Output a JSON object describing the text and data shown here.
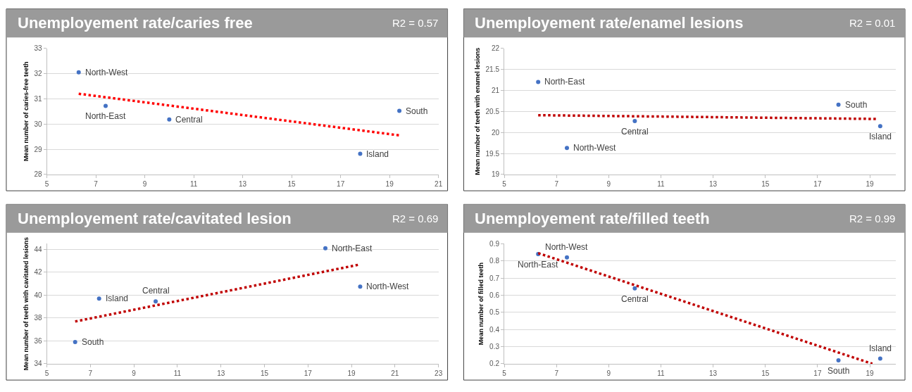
{
  "chart_data": [
    {
      "type": "scatter",
      "title": "Unemployement rate/caries free",
      "ylabel": "Mean number of caries-free teeth",
      "xlim": [
        5,
        21
      ],
      "xticks": [
        5,
        7,
        9,
        11,
        13,
        15,
        17,
        19,
        21
      ],
      "ylim": [
        28,
        33
      ],
      "yticks": [
        28,
        29,
        30,
        31,
        32,
        33
      ],
      "grid": "y",
      "annotations": [
        "R2 = 0.57",
        {
          "text": "North-West",
          "x": 6.3,
          "y": 32.05
        },
        {
          "text": "North-East",
          "x": 7.4,
          "y": 30.72
        },
        {
          "text": "Central",
          "x": 10.0,
          "y": 30.18
        },
        {
          "text": "Island",
          "x": 17.8,
          "y": 28.82
        },
        {
          "text": "South",
          "x": 19.4,
          "y": 30.52
        }
      ],
      "series": [
        {
          "type": "scatter",
          "color": "#4472c4",
          "marker": "circle",
          "x": [
            6.3,
            7.4,
            10.0,
            17.8,
            19.4
          ],
          "values": [
            32.05,
            30.72,
            30.18,
            28.82,
            30.52
          ]
        },
        {
          "type": "line",
          "color": "#ff0000",
          "marker": "none",
          "line_style": "dotted",
          "x": [
            6.3,
            19.4
          ],
          "values": [
            31.2,
            29.55
          ]
        }
      ]
    },
    {
      "type": "scatter",
      "title": "Unemployement rate/enamel lesions",
      "ylabel": "Mean number of teeth with enamel lesions",
      "xlim": [
        5,
        20
      ],
      "xticks": [
        5,
        7,
        9,
        11,
        13,
        15,
        17,
        19
      ],
      "ylim": [
        19,
        22
      ],
      "yticks": [
        19,
        19.5,
        20,
        20.5,
        21,
        21.5,
        22
      ],
      "grid": "y",
      "annotations": [
        "R2 = 0.01",
        {
          "text": "North-East",
          "x": 6.3,
          "y": 21.2
        },
        {
          "text": "North-West",
          "x": 7.4,
          "y": 19.63
        },
        {
          "text": "Central",
          "x": 10.0,
          "y": 20.27
        },
        {
          "text": "South",
          "x": 17.8,
          "y": 20.66
        },
        {
          "text": "Island",
          "x": 19.4,
          "y": 20.15
        }
      ],
      "series": [
        {
          "type": "scatter",
          "color": "#4472c4",
          "marker": "circle",
          "x": [
            6.3,
            7.4,
            10.0,
            17.8,
            19.4
          ],
          "values": [
            21.2,
            19.63,
            20.27,
            20.66,
            20.15
          ]
        },
        {
          "type": "line",
          "color": "#c00000",
          "marker": "none",
          "line_style": "dotted",
          "x": [
            6.3,
            19.3
          ],
          "values": [
            20.41,
            20.32
          ]
        }
      ]
    },
    {
      "type": "scatter",
      "title": "Unemployement rate/cavitated lesion",
      "ylabel": "Mean number of teeth with cavitated lesions",
      "xlim": [
        5,
        23
      ],
      "xticks": [
        5,
        7,
        9,
        11,
        13,
        15,
        17,
        19,
        21,
        23
      ],
      "ylim": [
        34,
        44.5
      ],
      "yticks": [
        34,
        36,
        38,
        40,
        42,
        44
      ],
      "grid": "y",
      "annotations": [
        "R2 = 0.69",
        {
          "text": "South",
          "x": 6.3,
          "y": 35.9
        },
        {
          "text": "Island",
          "x": 7.4,
          "y": 39.7
        },
        {
          "text": "Central",
          "x": 10.0,
          "y": 39.45
        },
        {
          "text": "North-East",
          "x": 17.8,
          "y": 44.1
        },
        {
          "text": "North-West",
          "x": 19.4,
          "y": 40.75
        }
      ],
      "series": [
        {
          "type": "scatter",
          "color": "#4472c4",
          "marker": "circle",
          "x": [
            6.3,
            7.4,
            10.0,
            17.8,
            19.4
          ],
          "values": [
            35.9,
            39.7,
            39.45,
            44.1,
            40.75
          ]
        },
        {
          "type": "line",
          "color": "#c00000",
          "marker": "none",
          "line_style": "dotted",
          "x": [
            6.3,
            19.3
          ],
          "values": [
            37.7,
            42.65
          ]
        }
      ]
    },
    {
      "type": "scatter",
      "title": "Unemployement rate/filled teeth",
      "ylabel": "Mean number of filled teeth",
      "xlim": [
        5,
        20
      ],
      "xticks": [
        5,
        7,
        9,
        11,
        13,
        15,
        17,
        19
      ],
      "ylim": [
        0.2,
        0.9
      ],
      "yticks": [
        0.2,
        0.3,
        0.4,
        0.5,
        0.6,
        0.7,
        0.8,
        0.9
      ],
      "grid": "y",
      "annotations": [
        "R2 = 0.99",
        {
          "text": "North-East",
          "x": 6.3,
          "y": 0.84
        },
        {
          "text": "North-West",
          "x": 7.4,
          "y": 0.82
        },
        {
          "text": "Central",
          "x": 10.0,
          "y": 0.64
        },
        {
          "text": "South",
          "x": 17.8,
          "y": 0.22
        },
        {
          "text": "Island",
          "x": 19.4,
          "y": 0.23
        }
      ],
      "series": [
        {
          "type": "scatter",
          "color": "#4472c4",
          "marker": "circle",
          "x": [
            6.3,
            7.4,
            10.0,
            17.8,
            19.4
          ],
          "values": [
            0.84,
            0.82,
            0.64,
            0.22,
            0.23
          ]
        },
        {
          "type": "line",
          "color": "#c00000",
          "marker": "none",
          "line_style": "dotted",
          "x": [
            6.3,
            19.1
          ],
          "values": [
            0.845,
            0.2
          ]
        }
      ]
    }
  ]
}
